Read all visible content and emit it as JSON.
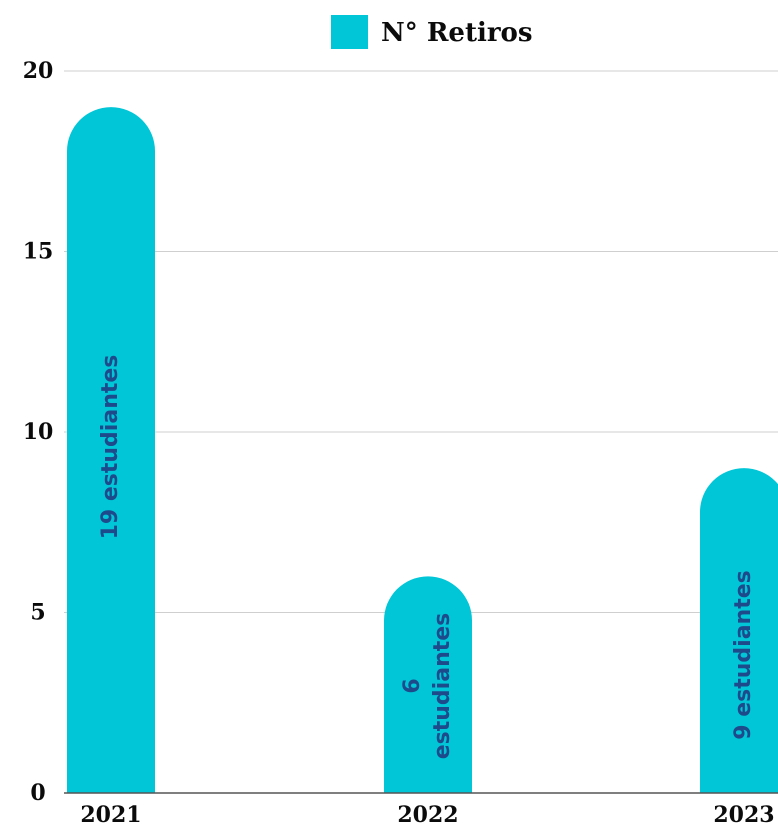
{
  "chart_data": {
    "type": "bar",
    "categories": [
      "2021",
      "2022",
      "2023"
    ],
    "series": [
      {
        "name": "N° Retiros",
        "values": [
          19,
          6,
          9
        ],
        "color": "#00c6d7",
        "data_labels": [
          [
            "19 estudiantes"
          ],
          [
            "6",
            "estudiantes"
          ],
          [
            "9 estudiantes"
          ]
        ]
      }
    ],
    "ylim": [
      0,
      20
    ],
    "yticks": [
      "0",
      "5",
      "10",
      "15",
      "20"
    ],
    "grid": true,
    "legend_position": "top-center",
    "title": "",
    "xlabel": "",
    "ylabel": "",
    "colors": {
      "bar": "#00c6d7",
      "label": "#1e4a8c",
      "grid": "#cfcfcf",
      "axis": "#555555",
      "text": "#0b0b0b"
    }
  }
}
